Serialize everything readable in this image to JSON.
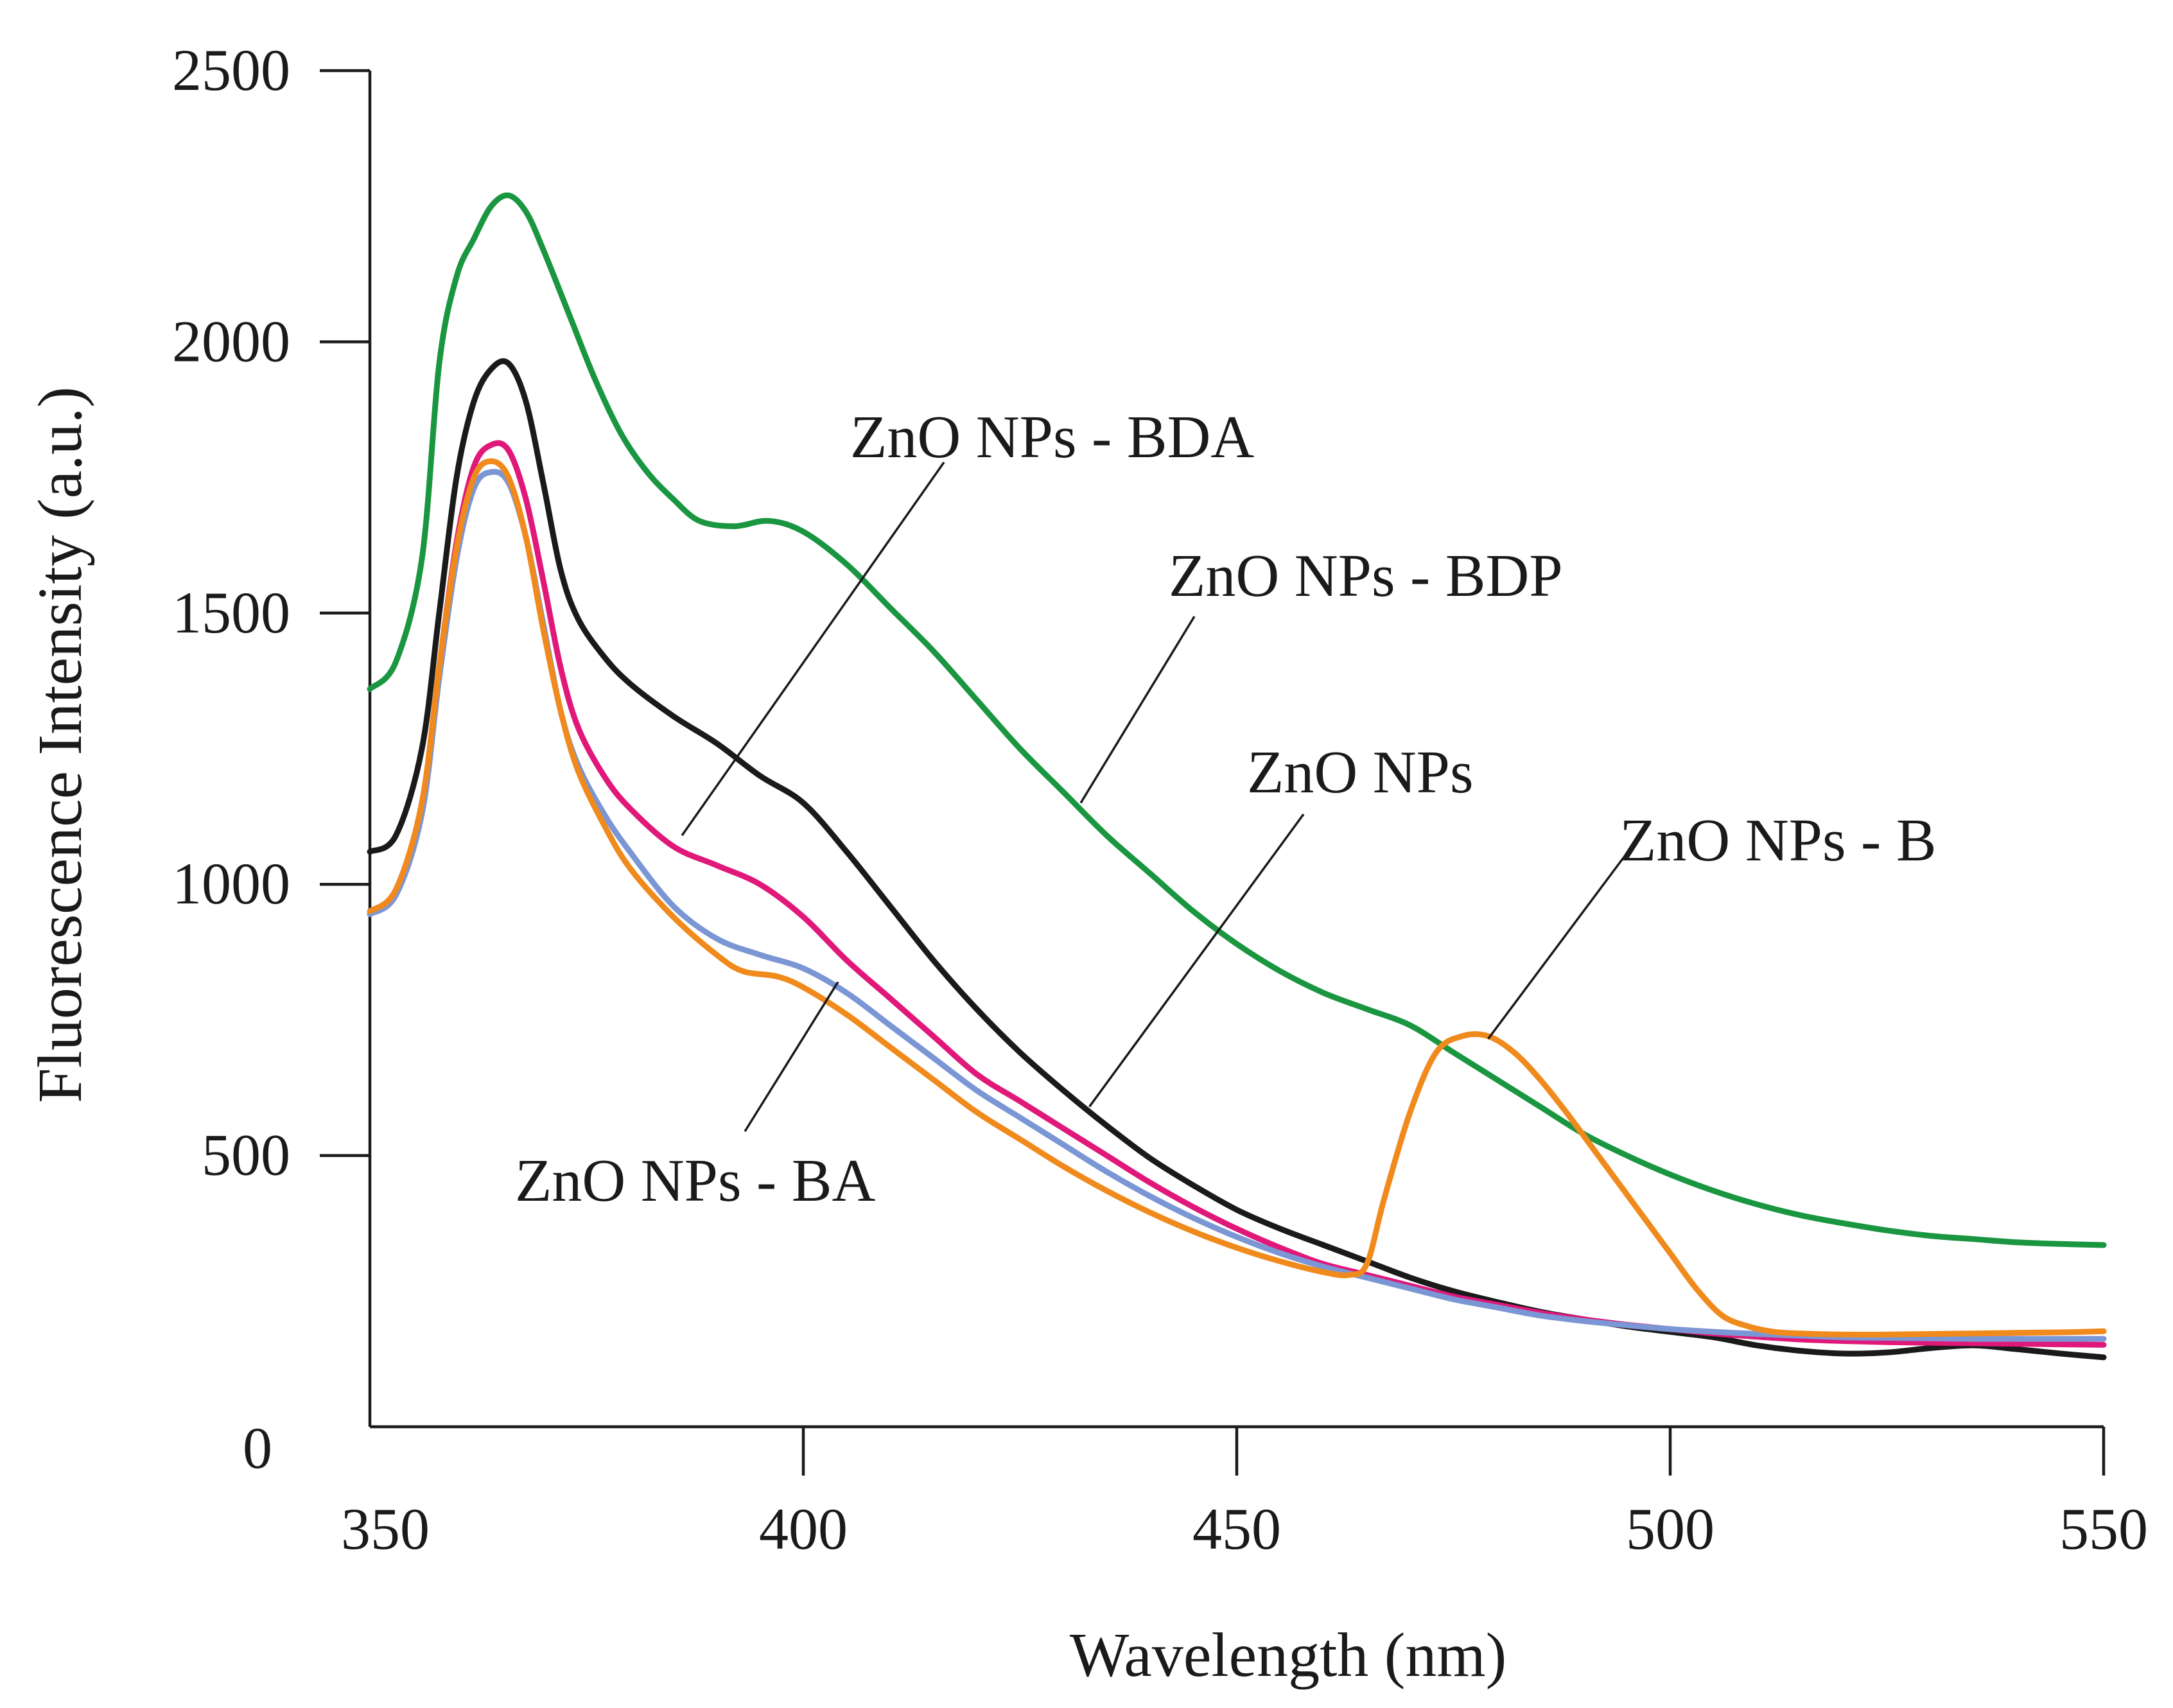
{
  "chart_data": {
    "type": "line",
    "title": "",
    "xlabel": "Wavelength (nm)",
    "ylabel": "Fluorescence Intensity (a.u.)",
    "xlim": [
      350,
      550
    ],
    "ylim": [
      0,
      2500
    ],
    "xticks": [
      350,
      400,
      450,
      500,
      550
    ],
    "yticks": [
      0,
      500,
      1000,
      1500,
      2000,
      2500
    ],
    "grid": false,
    "legend": "none",
    "series": [
      {
        "name": "ZnO NPs - BDP",
        "color": "#1a9641",
        "points": [
          [
            350,
            1360
          ],
          [
            353,
            1410
          ],
          [
            356,
            1600
          ],
          [
            358,
            1960
          ],
          [
            360,
            2120
          ],
          [
            362,
            2190
          ],
          [
            364,
            2250
          ],
          [
            366,
            2270
          ],
          [
            368,
            2240
          ],
          [
            370,
            2170
          ],
          [
            373,
            2050
          ],
          [
            376,
            1930
          ],
          [
            379,
            1830
          ],
          [
            382,
            1760
          ],
          [
            385,
            1710
          ],
          [
            388,
            1670
          ],
          [
            392,
            1660
          ],
          [
            396,
            1670
          ],
          [
            400,
            1650
          ],
          [
            405,
            1590
          ],
          [
            410,
            1510
          ],
          [
            415,
            1430
          ],
          [
            420,
            1340
          ],
          [
            425,
            1250
          ],
          [
            430,
            1170
          ],
          [
            435,
            1090
          ],
          [
            440,
            1020
          ],
          [
            445,
            950
          ],
          [
            450,
            890
          ],
          [
            455,
            840
          ],
          [
            460,
            800
          ],
          [
            465,
            770
          ],
          [
            470,
            740
          ],
          [
            475,
            690
          ],
          [
            480,
            640
          ],
          [
            485,
            590
          ],
          [
            490,
            540
          ],
          [
            495,
            500
          ],
          [
            500,
            465
          ],
          [
            505,
            435
          ],
          [
            510,
            410
          ],
          [
            515,
            390
          ],
          [
            520,
            375
          ],
          [
            525,
            362
          ],
          [
            530,
            352
          ],
          [
            535,
            346
          ],
          [
            540,
            340
          ],
          [
            545,
            337
          ],
          [
            550,
            335
          ]
        ]
      },
      {
        "name": "ZnO NPs",
        "color": "#1a1a1a",
        "points": [
          [
            350,
            1060
          ],
          [
            353,
            1090
          ],
          [
            356,
            1250
          ],
          [
            358,
            1500
          ],
          [
            360,
            1750
          ],
          [
            362,
            1890
          ],
          [
            364,
            1950
          ],
          [
            366,
            1960
          ],
          [
            368,
            1890
          ],
          [
            370,
            1740
          ],
          [
            372,
            1580
          ],
          [
            374,
            1490
          ],
          [
            377,
            1420
          ],
          [
            380,
            1370
          ],
          [
            385,
            1310
          ],
          [
            390,
            1260
          ],
          [
            395,
            1200
          ],
          [
            400,
            1150
          ],
          [
            405,
            1060
          ],
          [
            410,
            960
          ],
          [
            415,
            860
          ],
          [
            420,
            770
          ],
          [
            425,
            690
          ],
          [
            430,
            620
          ],
          [
            435,
            555
          ],
          [
            440,
            495
          ],
          [
            445,
            445
          ],
          [
            450,
            400
          ],
          [
            455,
            365
          ],
          [
            460,
            335
          ],
          [
            465,
            305
          ],
          [
            470,
            275
          ],
          [
            475,
            250
          ],
          [
            480,
            230
          ],
          [
            485,
            212
          ],
          [
            490,
            198
          ],
          [
            495,
            185
          ],
          [
            500,
            175
          ],
          [
            505,
            165
          ],
          [
            510,
            150
          ],
          [
            515,
            140
          ],
          [
            520,
            135
          ],
          [
            525,
            137
          ],
          [
            530,
            145
          ],
          [
            535,
            150
          ],
          [
            540,
            143
          ],
          [
            545,
            135
          ],
          [
            550,
            128
          ]
        ]
      },
      {
        "name": "ZnO NPs - BDA",
        "color": "#e0187a",
        "points": [
          [
            350,
            950
          ],
          [
            353,
            990
          ],
          [
            356,
            1150
          ],
          [
            358,
            1400
          ],
          [
            360,
            1630
          ],
          [
            362,
            1770
          ],
          [
            364,
            1810
          ],
          [
            366,
            1800
          ],
          [
            368,
            1710
          ],
          [
            370,
            1560
          ],
          [
            372,
            1400
          ],
          [
            374,
            1290
          ],
          [
            377,
            1200
          ],
          [
            380,
            1140
          ],
          [
            385,
            1070
          ],
          [
            390,
            1035
          ],
          [
            395,
            1000
          ],
          [
            400,
            940
          ],
          [
            405,
            860
          ],
          [
            410,
            790
          ],
          [
            415,
            720
          ],
          [
            420,
            650
          ],
          [
            425,
            600
          ],
          [
            430,
            550
          ],
          [
            435,
            500
          ],
          [
            440,
            450
          ],
          [
            445,
            405
          ],
          [
            450,
            365
          ],
          [
            455,
            330
          ],
          [
            460,
            300
          ],
          [
            465,
            280
          ],
          [
            470,
            260
          ],
          [
            475,
            240
          ],
          [
            480,
            225
          ],
          [
            485,
            210
          ],
          [
            490,
            198
          ],
          [
            495,
            188
          ],
          [
            500,
            180
          ],
          [
            505,
            172
          ],
          [
            510,
            166
          ],
          [
            515,
            161
          ],
          [
            520,
            158
          ],
          [
            525,
            156
          ],
          [
            530,
            155
          ],
          [
            535,
            154
          ],
          [
            540,
            153
          ],
          [
            545,
            152
          ],
          [
            550,
            151
          ]
        ]
      },
      {
        "name": "ZnO NPs - BA",
        "color": "#7b96d4",
        "points": [
          [
            350,
            945
          ],
          [
            353,
            980
          ],
          [
            356,
            1130
          ],
          [
            358,
            1380
          ],
          [
            360,
            1600
          ],
          [
            362,
            1730
          ],
          [
            364,
            1760
          ],
          [
            366,
            1740
          ],
          [
            368,
            1640
          ],
          [
            370,
            1480
          ],
          [
            372,
            1320
          ],
          [
            374,
            1220
          ],
          [
            377,
            1130
          ],
          [
            380,
            1060
          ],
          [
            385,
            960
          ],
          [
            390,
            900
          ],
          [
            395,
            870
          ],
          [
            400,
            845
          ],
          [
            405,
            800
          ],
          [
            410,
            740
          ],
          [
            415,
            680
          ],
          [
            420,
            620
          ],
          [
            425,
            570
          ],
          [
            430,
            520
          ],
          [
            435,
            470
          ],
          [
            440,
            425
          ],
          [
            445,
            385
          ],
          [
            450,
            350
          ],
          [
            455,
            320
          ],
          [
            460,
            295
          ],
          [
            465,
            275
          ],
          [
            470,
            255
          ],
          [
            475,
            235
          ],
          [
            480,
            220
          ],
          [
            485,
            205
          ],
          [
            490,
            195
          ],
          [
            495,
            187
          ],
          [
            500,
            180
          ],
          [
            505,
            175
          ],
          [
            510,
            171
          ],
          [
            515,
            168
          ],
          [
            520,
            165
          ],
          [
            525,
            164
          ],
          [
            530,
            163
          ],
          [
            535,
            162
          ],
          [
            540,
            162
          ],
          [
            545,
            162
          ],
          [
            550,
            162
          ]
        ]
      },
      {
        "name": "ZnO NPs - B",
        "color": "#f08a1c",
        "points": [
          [
            350,
            950
          ],
          [
            353,
            990
          ],
          [
            356,
            1150
          ],
          [
            358,
            1400
          ],
          [
            360,
            1620
          ],
          [
            362,
            1750
          ],
          [
            364,
            1780
          ],
          [
            366,
            1750
          ],
          [
            368,
            1640
          ],
          [
            370,
            1470
          ],
          [
            372,
            1320
          ],
          [
            374,
            1210
          ],
          [
            377,
            1110
          ],
          [
            380,
            1030
          ],
          [
            385,
            940
          ],
          [
            390,
            870
          ],
          [
            393,
            840
          ],
          [
            397,
            830
          ],
          [
            400,
            810
          ],
          [
            405,
            760
          ],
          [
            410,
            700
          ],
          [
            415,
            640
          ],
          [
            420,
            580
          ],
          [
            425,
            530
          ],
          [
            430,
            480
          ],
          [
            435,
            435
          ],
          [
            440,
            395
          ],
          [
            445,
            360
          ],
          [
            450,
            330
          ],
          [
            455,
            305
          ],
          [
            460,
            285
          ],
          [
            463,
            280
          ],
          [
            465,
            300
          ],
          [
            467,
            420
          ],
          [
            470,
            580
          ],
          [
            473,
            690
          ],
          [
            476,
            720
          ],
          [
            479,
            720
          ],
          [
            482,
            690
          ],
          [
            485,
            640
          ],
          [
            488,
            580
          ],
          [
            491,
            515
          ],
          [
            494,
            450
          ],
          [
            497,
            385
          ],
          [
            500,
            320
          ],
          [
            503,
            255
          ],
          [
            506,
            205
          ],
          [
            509,
            185
          ],
          [
            512,
            175
          ],
          [
            515,
            172
          ],
          [
            520,
            170
          ],
          [
            525,
            170
          ],
          [
            530,
            171
          ],
          [
            535,
            172
          ],
          [
            540,
            173
          ],
          [
            545,
            174
          ],
          [
            550,
            176
          ]
        ]
      }
    ],
    "annotations": [
      {
        "text": "ZnO NPs - BDA",
        "target": [
          386,
          1090
        ]
      },
      {
        "text": "ZnO NPs - BDP",
        "target": [
          432,
          1150
        ]
      },
      {
        "text": "ZnO NPs",
        "target": [
          433,
          590
        ]
      },
      {
        "text": "ZnO NPs - B",
        "target": [
          479,
          715
        ]
      },
      {
        "text": "ZnO NPs - BA",
        "target": [
          404,
          820
        ]
      }
    ]
  }
}
